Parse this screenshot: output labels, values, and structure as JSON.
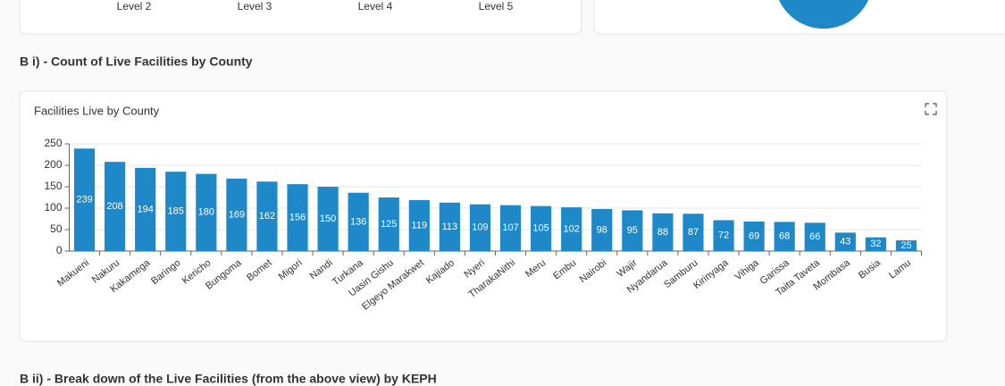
{
  "top_card": {
    "labels": [
      "Level 2",
      "Level 3",
      "Level 4",
      "Level 5"
    ]
  },
  "sections": [
    {
      "title": "B i) - Count of Live Facilities by County"
    },
    {
      "title": "B ii) - Break down of the Live Facilities (from the above view) by KEPH"
    }
  ],
  "chart_data": {
    "type": "bar",
    "title": "Facilities Live by County",
    "categories": [
      "Makueni",
      "Nakuru",
      "Kakamega",
      "Baringo",
      "Kericho",
      "Bungoma",
      "Bomet",
      "Migori",
      "Nandi",
      "Turkana",
      "Uasin Gishu",
      "Elgeyo Marakwet",
      "Kajiado",
      "Nyeri",
      "TharakaNithi",
      "Meru",
      "Embu",
      "Nairobi",
      "Wajir",
      "Nyandarua",
      "Samburu",
      "Kirinyaga",
      "Vihiga",
      "Garissa",
      "Taita Taveta",
      "Mombasa",
      "Busia",
      "Lamu"
    ],
    "values": [
      239,
      208,
      194,
      185,
      180,
      169,
      162,
      156,
      150,
      136,
      125,
      119,
      113,
      109,
      107,
      105,
      102,
      98,
      95,
      88,
      87,
      72,
      69,
      68,
      66,
      43,
      32,
      25
    ],
    "color": "#1f88c8",
    "ylim": [
      0,
      250
    ],
    "yticks": [
      0,
      50,
      100,
      150,
      200,
      250
    ],
    "grid": true
  }
}
